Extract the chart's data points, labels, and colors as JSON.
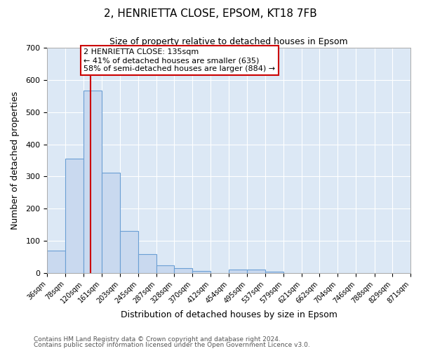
{
  "title": "2, HENRIETTA CLOSE, EPSOM, KT18 7FB",
  "subtitle": "Size of property relative to detached houses in Epsom",
  "xlabel": "Distribution of detached houses by size in Epsom",
  "ylabel": "Number of detached properties",
  "bar_edges": [
    36,
    78,
    120,
    161,
    203,
    245,
    287,
    328,
    370,
    412,
    454,
    495,
    537,
    579,
    621,
    662,
    704,
    746,
    788,
    829,
    871
  ],
  "bar_heights": [
    70,
    355,
    568,
    313,
    131,
    58,
    25,
    15,
    7,
    0,
    10,
    10,
    5,
    0,
    0,
    0,
    0,
    0,
    0,
    0
  ],
  "bar_color": "#c9d9ef",
  "bar_edge_color": "#6b9fd4",
  "vline_x": 135,
  "vline_color": "#cc0000",
  "ylim": [
    0,
    700
  ],
  "yticks": [
    0,
    100,
    200,
    300,
    400,
    500,
    600,
    700
  ],
  "annotation_text": "2 HENRIETTA CLOSE: 135sqm\n← 41% of detached houses are smaller (635)\n58% of semi-detached houses are larger (884) →",
  "annotation_box_facecolor": "#ffffff",
  "annotation_box_edgecolor": "#cc0000",
  "footer_line1": "Contains HM Land Registry data © Crown copyright and database right 2024.",
  "footer_line2": "Contains public sector information licensed under the Open Government Licence v3.0.",
  "bg_color": "#ffffff",
  "plot_bg_color": "#dce8f5",
  "grid_color": "#ffffff",
  "tick_labels": [
    "36sqm",
    "78sqm",
    "120sqm",
    "161sqm",
    "203sqm",
    "245sqm",
    "287sqm",
    "328sqm",
    "370sqm",
    "412sqm",
    "454sqm",
    "495sqm",
    "537sqm",
    "579sqm",
    "621sqm",
    "662sqm",
    "704sqm",
    "746sqm",
    "788sqm",
    "829sqm",
    "871sqm"
  ]
}
